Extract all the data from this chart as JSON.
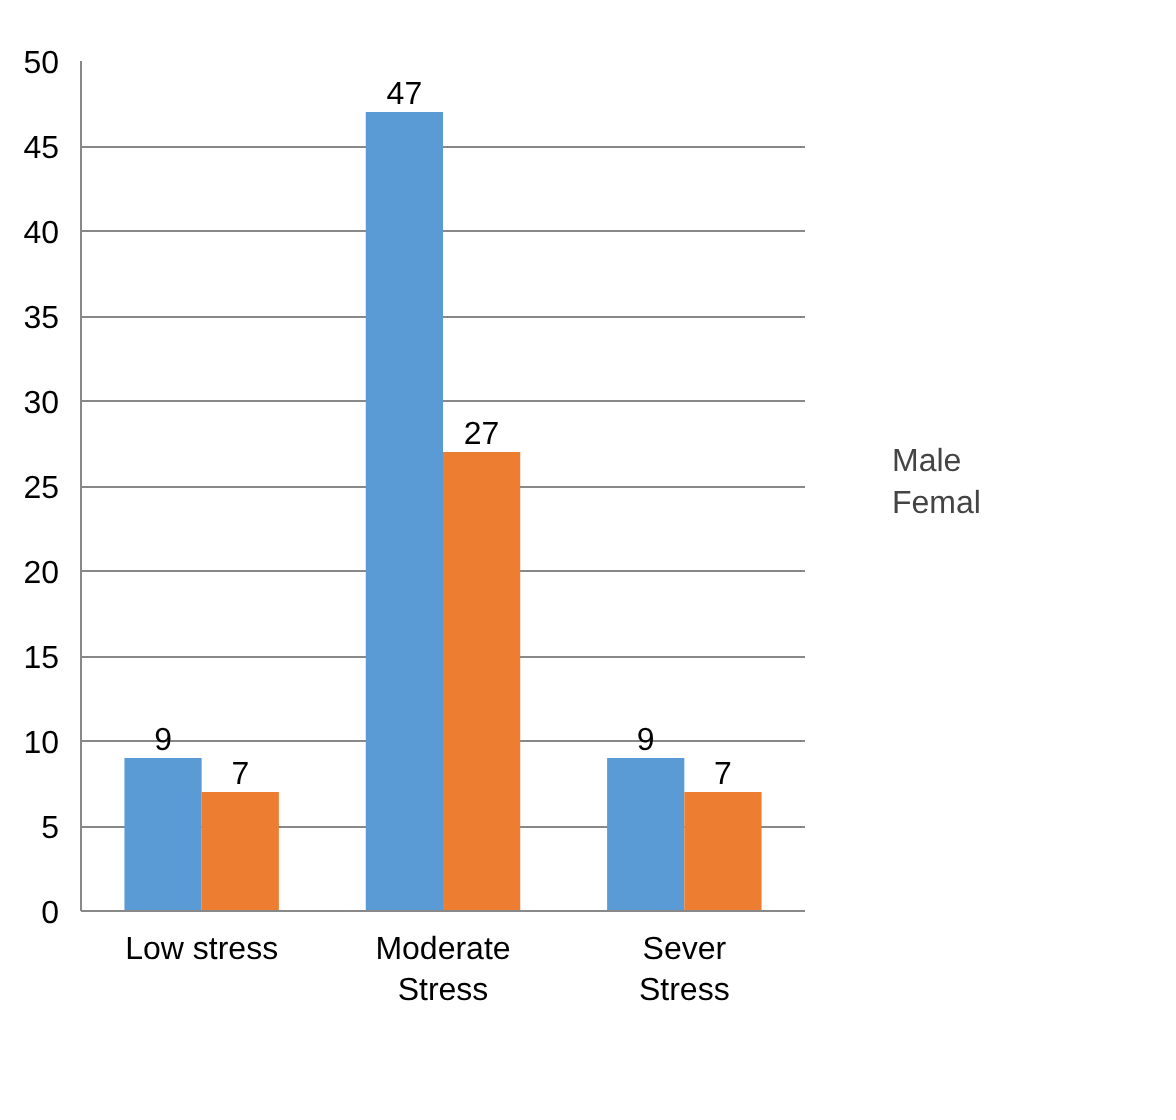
{
  "chart_data": {
    "type": "bar",
    "categories": [
      "Low stress",
      "Moderate Stress",
      "Sever Stress"
    ],
    "series": [
      {
        "name": "Male",
        "color": "#5b9bd5",
        "values": [
          9,
          47,
          9
        ]
      },
      {
        "name": "Femal",
        "color": "#ed7d31",
        "values": [
          7,
          27,
          7
        ]
      }
    ],
    "ylim": [
      0,
      50
    ],
    "yticks": [
      0,
      5,
      10,
      15,
      20,
      25,
      30,
      35,
      40,
      45,
      50
    ],
    "grid": "y",
    "legend": "right",
    "data_labels": true
  }
}
